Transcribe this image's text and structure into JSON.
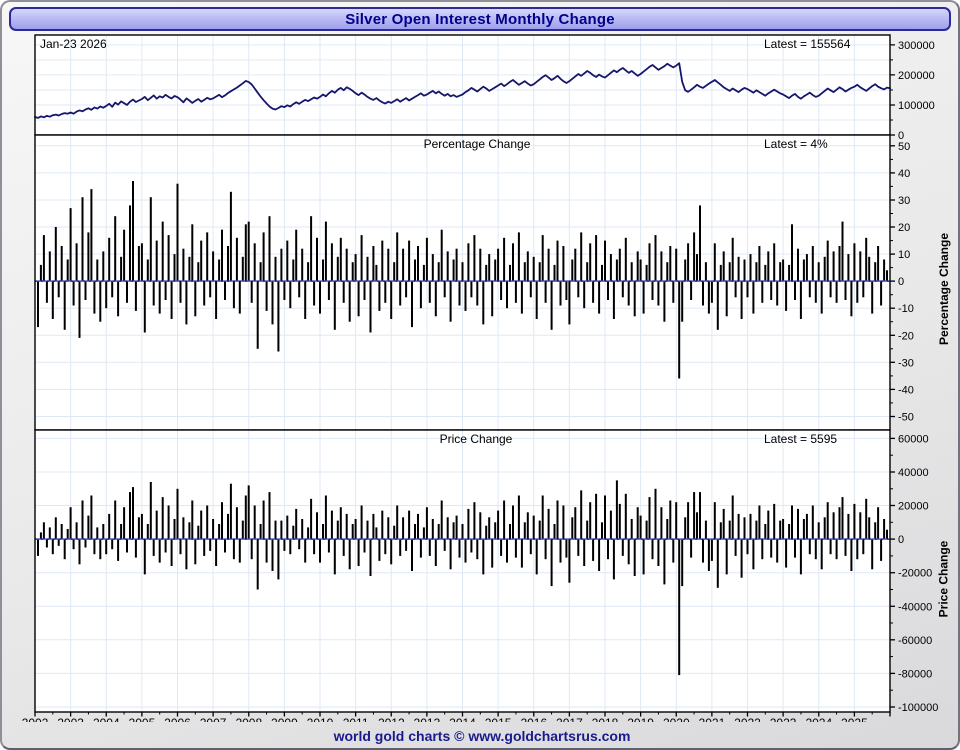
{
  "window": {
    "title": "Silver Open Interest Monthly Change",
    "footer": "world gold charts © www.goldchartsrus.com"
  },
  "labels": {
    "date": "Jan-23  2026",
    "oi_latest": "Latest = 155564",
    "pct_title": "Percentage Change",
    "pct_latest": "Latest = 4%",
    "price_title": "Price Change",
    "price_latest": "Latest = 5595",
    "pct_axis_title": "Percentage Change",
    "price_axis_title": "Price Change"
  },
  "colors": {
    "line": "#16166b",
    "bar": "#000000",
    "zero_line": "#3a43c9",
    "grid": "#dfe9f5",
    "panel_bg": "#ffffff",
    "panel_border": "#000000",
    "title_text": "#00008b",
    "footer_text": "#1a1a8c"
  },
  "chart_data": {
    "type": "multi-panel",
    "title": "Silver Open Interest Monthly Change",
    "x_range": [
      2002,
      2026
    ],
    "grid": true,
    "years": [
      2002,
      2003,
      2004,
      2005,
      2006,
      2007,
      2008,
      2009,
      2010,
      2011,
      2012,
      2013,
      2014,
      2015,
      2016,
      2017,
      2018,
      2019,
      2020,
      2021,
      2022,
      2023,
      2024,
      2025
    ],
    "panels": [
      {
        "name": "open_interest",
        "type": "line",
        "latest": 155564,
        "latest_date": "Jan-23 2026",
        "ylabel": "",
        "y_ticks": [
          0,
          100000,
          200000,
          300000
        ],
        "y_domain": [
          0,
          333000
        ],
        "start_year": 2002,
        "points_per_year": 12,
        "values": [
          60000,
          57000,
          62000,
          59000,
          64000,
          61000,
          66000,
          68000,
          65000,
          70000,
          73000,
          71000,
          75000,
          71000,
          78000,
          82000,
          79000,
          85000,
          89000,
          84000,
          92000,
          88000,
          95000,
          91000,
          97000,
          104000,
          94000,
          108000,
          101000,
          112000,
          106000,
          100000,
          111000,
          118000,
          110000,
          115000,
          120000,
          127000,
          116000,
          124000,
          132000,
          121000,
          129000,
          125000,
          134000,
          127000,
          122000,
          130000,
          126000,
          118000,
          109000,
          122000,
          115000,
          107000,
          114000,
          120000,
          111000,
          117000,
          124000,
          119000,
          122000,
          128000,
          134000,
          126000,
          132000,
          140000,
          146000,
          152000,
          158000,
          165000,
          172000,
          180000,
          176000,
          168000,
          155000,
          141000,
          128000,
          116000,
          105000,
          95000,
          88000,
          85000,
          90000,
          96000,
          93000,
          99000,
          95000,
          103000,
          109000,
          104000,
          111000,
          117000,
          113000,
          119000,
          125000,
          121000,
          127000,
          135000,
          129000,
          139000,
          147000,
          141000,
          151000,
          157000,
          149000,
          159000,
          154000,
          147000,
          139000,
          133000,
          141000,
          135000,
          127000,
          121000,
          117000,
          123000,
          115000,
          109000,
          105000,
          111000,
          107000,
          113000,
          119000,
          111000,
          117000,
          123000,
          115000,
          121000,
          127000,
          133000,
          139000,
          131000,
          135000,
          141000,
          147000,
          139000,
          145000,
          137000,
          131000,
          137000,
          129000,
          133000,
          127000,
          131000,
          135000,
          143000,
          149000,
          157000,
          151000,
          145000,
          153000,
          161000,
          155000,
          147000,
          153000,
          159000,
          165000,
          171000,
          163000,
          169000,
          177000,
          183000,
          175000,
          167000,
          173000,
          179000,
          171000,
          165000,
          169000,
          177000,
          185000,
          193000,
          199000,
          191000,
          183000,
          189000,
          197000,
          187000,
          179000,
          173000,
          179000,
          187000,
          195000,
          203000,
          197000,
          205000,
          213000,
          207000,
          199000,
          193000,
          201000,
          195000,
          191000,
          199000,
          207000,
          215000,
          209000,
          217000,
          223000,
          215000,
          207000,
          213000,
          205000,
          197000,
          203000,
          211000,
          219000,
          227000,
          233000,
          225000,
          217000,
          223000,
          229000,
          237000,
          231000,
          225000,
          231000,
          239000,
          177000,
          149000,
          144000,
          151000,
          159000,
          167000,
          161000,
          157000,
          164000,
          171000,
          177000,
          183000,
          175000,
          167000,
          159000,
          153000,
          147000,
          155000,
          149000,
          143000,
          151000,
          157000,
          153000,
          147000,
          141000,
          149000,
          143000,
          137000,
          131000,
          139000,
          145000,
          151000,
          145000,
          139000,
          135000,
          129000,
          123000,
          131000,
          137000,
          127000,
          121000,
          129000,
          135000,
          141000,
          133000,
          127000,
          131000,
          139000,
          147000,
          155000,
          149000,
          143000,
          151000,
          159000,
          153000,
          145000,
          151000,
          157000,
          161000,
          167000,
          159000,
          153000,
          147000,
          155000,
          163000,
          169000,
          161000,
          156000,
          152000,
          158000,
          155564
        ]
      },
      {
        "name": "percentage_change",
        "type": "bar",
        "label": "Percentage Change",
        "axis_label": "Percentage Change",
        "latest": 4,
        "unit": "%",
        "y_ticks": [
          50,
          40,
          30,
          20,
          10,
          0,
          -10,
          -20,
          -30,
          -40,
          -50
        ],
        "y_domain": [
          -55,
          54
        ],
        "start_year_frac": 2002.0833,
        "values": [
          -17,
          6,
          17,
          -8,
          11,
          -14,
          20,
          -6,
          13,
          -18,
          8,
          27,
          -9,
          14,
          -21,
          31,
          -7,
          18,
          34,
          -12,
          8,
          -15,
          11,
          -10,
          16,
          -6,
          24,
          -13,
          9,
          19,
          -8,
          28,
          37,
          -11,
          13,
          14,
          -19,
          8,
          31,
          -9,
          15,
          -12,
          22,
          -7,
          17,
          -14,
          10,
          36,
          -8,
          12,
          -16,
          9,
          21,
          -13,
          7,
          15,
          -9,
          18,
          -6,
          11,
          -14,
          8,
          19,
          -7,
          13,
          33,
          -10,
          16,
          -12,
          9,
          21,
          22,
          -8,
          14,
          -25,
          7,
          18,
          -11,
          24,
          -16,
          9,
          -26,
          12,
          -7,
          15,
          -10,
          8,
          19,
          -6,
          12,
          -14,
          7,
          24,
          -9,
          16,
          -12,
          8,
          22,
          -7,
          14,
          -18,
          9,
          16,
          -8,
          12,
          -15,
          7,
          10,
          -13,
          17,
          -7,
          9,
          -19,
          13,
          6,
          -11,
          15,
          -8,
          12,
          -14,
          7,
          18,
          -9,
          12,
          -6,
          15,
          -17,
          8,
          13,
          -10,
          6,
          16,
          -8,
          10,
          -13,
          7,
          19,
          -6,
          11,
          -15,
          8,
          12,
          -9,
          7,
          -11,
          14,
          -6,
          17,
          -9,
          12,
          -16,
          6,
          10,
          -13,
          8,
          12,
          -7,
          16,
          -10,
          6,
          14,
          -8,
          18,
          -12,
          7,
          11,
          -6,
          9,
          -14,
          7,
          17,
          -8,
          12,
          -18,
          6,
          15,
          -9,
          13,
          -7,
          -16,
          8,
          12,
          -6,
          18,
          -10,
          7,
          14,
          -8,
          17,
          -12,
          6,
          15,
          -7,
          10,
          -14,
          8,
          12,
          -6,
          16,
          -9,
          7,
          -13,
          11,
          8,
          -12,
          6,
          14,
          -7,
          17,
          -9,
          11,
          -15,
          7,
          13,
          -8,
          12,
          -36,
          -15,
          8,
          14,
          -7,
          18,
          10,
          28,
          -9,
          7,
          -12,
          -8,
          14,
          -18,
          6,
          11,
          -13,
          7,
          16,
          -6,
          9,
          -14,
          8,
          -6,
          10,
          -12,
          7,
          13,
          -8,
          6,
          11,
          -7,
          14,
          -9,
          7,
          8,
          -11,
          6,
          21,
          -7,
          12,
          -14,
          8,
          10,
          -6,
          13,
          -8,
          7,
          -12,
          9,
          15,
          -6,
          11,
          -8,
          13,
          22,
          -7,
          10,
          -13,
          14,
          -8,
          11,
          -6,
          16,
          9,
          -12,
          7,
          13,
          -9,
          8,
          4
        ]
      },
      {
        "name": "price_change",
        "type": "bar",
        "label": "Price Change",
        "axis_label": "Price Change",
        "latest": 5595,
        "y_ticks": [
          60000,
          40000,
          20000,
          0,
          -20000,
          -40000,
          -60000,
          -80000,
          -100000
        ],
        "y_domain": [
          -103000,
          65000
        ],
        "start_year_frac": 2002.0833,
        "values": [
          -10000,
          4000,
          10000,
          -5000,
          7000,
          -9000,
          13000,
          -4000,
          9000,
          -12000,
          6000,
          19000,
          -6000,
          10000,
          -15000,
          23000,
          -5000,
          14000,
          26000,
          -9000,
          7000,
          -12000,
          9000,
          -9000,
          15000,
          -6000,
          23000,
          -13000,
          9000,
          19000,
          -8000,
          28000,
          31000,
          -11000,
          13000,
          15000,
          -21000,
          9000,
          34000,
          -10000,
          17000,
          -14000,
          25000,
          -8000,
          20000,
          -16000,
          12000,
          30000,
          -9000,
          13000,
          -18000,
          10000,
          23000,
          -15000,
          8000,
          17000,
          -10000,
          20000,
          -7000,
          12000,
          -16000,
          9000,
          22000,
          -8000,
          15000,
          33000,
          -12000,
          19000,
          -14000,
          11000,
          26000,
          32000,
          -12000,
          20000,
          -30000,
          9000,
          23000,
          -14000,
          28000,
          -19000,
          11000,
          -24000,
          11000,
          -7000,
          14000,
          -9000,
          8000,
          18000,
          -6000,
          12000,
          -14000,
          7000,
          24000,
          -9000,
          16000,
          -14000,
          9000,
          26000,
          -8000,
          17000,
          -21000,
          11000,
          19000,
          -10000,
          15000,
          -18000,
          9000,
          12000,
          -16000,
          20000,
          -8000,
          11000,
          -22000,
          15000,
          7000,
          -13000,
          17000,
          -9000,
          13000,
          -15000,
          8000,
          20000,
          -10000,
          13000,
          -7000,
          17000,
          -19000,
          9000,
          15000,
          -11000,
          7000,
          19000,
          -10000,
          12000,
          -16000,
          9000,
          23000,
          -7000,
          13000,
          -18000,
          10000,
          14000,
          -11000,
          9000,
          -14000,
          18000,
          -8000,
          22000,
          -12000,
          16000,
          -21000,
          8000,
          13000,
          -17000,
          10000,
          17000,
          -10000,
          23000,
          -14000,
          9000,
          20000,
          -11000,
          26000,
          -17000,
          10000,
          16000,
          -9000,
          14000,
          -21000,
          11000,
          26000,
          -12000,
          18000,
          -28000,
          9000,
          23000,
          -14000,
          20000,
          -11000,
          -26000,
          13000,
          19000,
          -10000,
          29000,
          -16000,
          11000,
          22000,
          -13000,
          27000,
          -19000,
          10000,
          26000,
          -12000,
          17000,
          -24000,
          35000,
          21000,
          -10000,
          27000,
          -15000,
          12000,
          -22000,
          19000,
          14000,
          -21000,
          11000,
          25000,
          -12000,
          30000,
          -16000,
          19000,
          -27000,
          12000,
          23000,
          -14000,
          22000,
          -81000,
          -28000,
          13000,
          22000,
          -11000,
          28000,
          16000,
          28000,
          -14000,
          11000,
          -19000,
          -13000,
          22000,
          -29000,
          10000,
          18000,
          -21000,
          11000,
          26000,
          -10000,
          15000,
          -23000,
          13000,
          -9000,
          15000,
          -18000,
          11000,
          20000,
          -12000,
          9000,
          17000,
          -11000,
          21000,
          -14000,
          11000,
          12000,
          -17000,
          9000,
          20000,
          -11000,
          18000,
          -21000,
          12000,
          15000,
          -9000,
          20000,
          -12000,
          10000,
          -18000,
          13000,
          22000,
          -9000,
          16000,
          -12000,
          19000,
          25000,
          -10000,
          15000,
          -19000,
          21000,
          -12000,
          16000,
          -9000,
          24000,
          13000,
          -18000,
          10000,
          19000,
          -13000,
          12000,
          5595
        ]
      }
    ]
  }
}
